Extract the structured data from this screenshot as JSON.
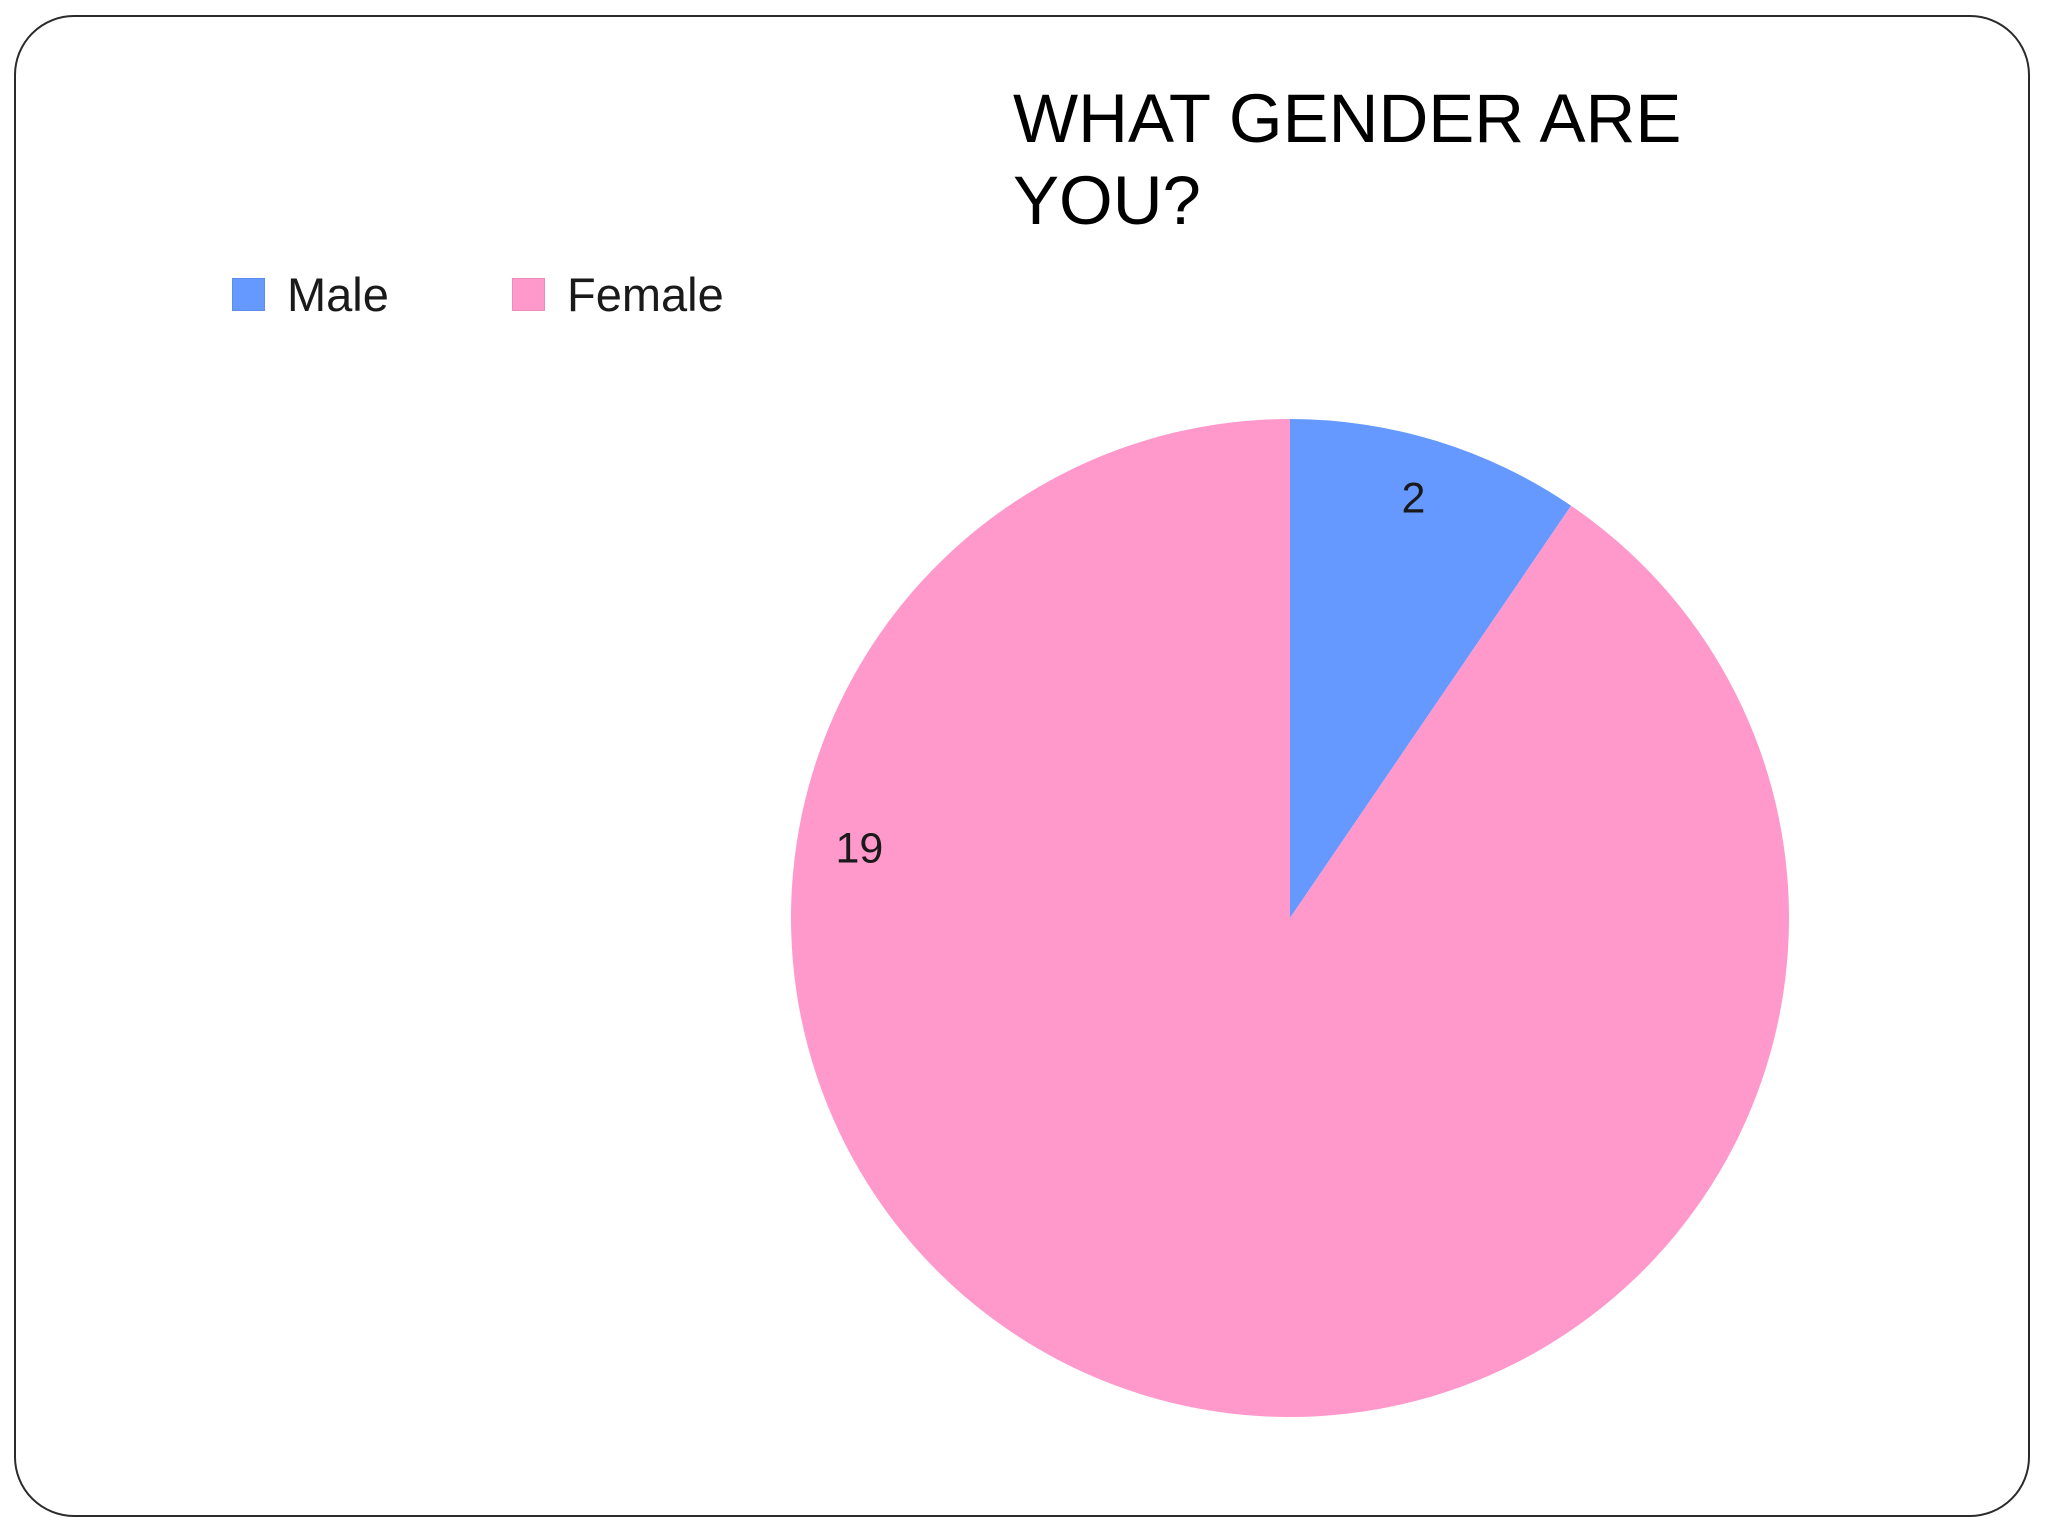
{
  "chart_data": {
    "type": "pie",
    "title": "WHAT GENDER ARE YOU?",
    "categories": [
      "Male",
      "Female"
    ],
    "values": [
      2,
      19
    ],
    "colors": [
      "#6699ff",
      "#ff99cc"
    ],
    "legend": "top-left",
    "start_angle": "12 o'clock",
    "direction": "clockwise"
  },
  "legend": {
    "items": [
      {
        "label": "Male",
        "color": "#6699ff"
      },
      {
        "label": "Female",
        "color": "#ff99cc"
      }
    ]
  }
}
